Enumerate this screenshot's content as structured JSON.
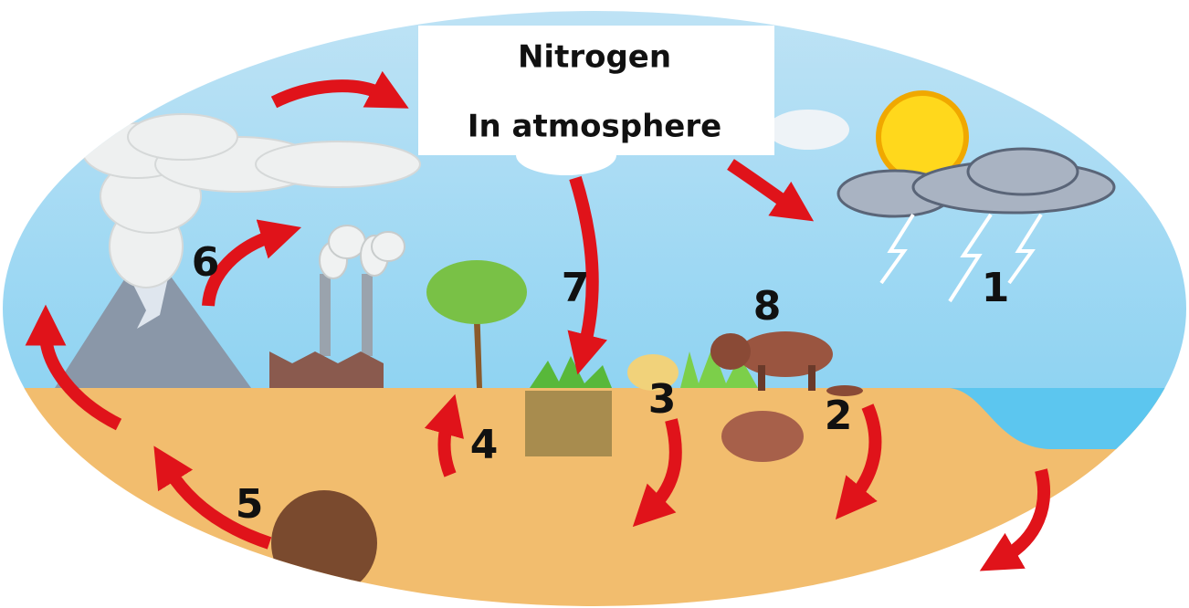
{
  "title": {
    "line1": "Nitrogen",
    "line2": "In atmosphere"
  },
  "steps": [
    {
      "label": "1"
    },
    {
      "label": "2"
    },
    {
      "label": "3"
    },
    {
      "label": "4"
    },
    {
      "label": "5"
    },
    {
      "label": "6"
    },
    {
      "label": "7"
    },
    {
      "label": "8"
    }
  ]
}
